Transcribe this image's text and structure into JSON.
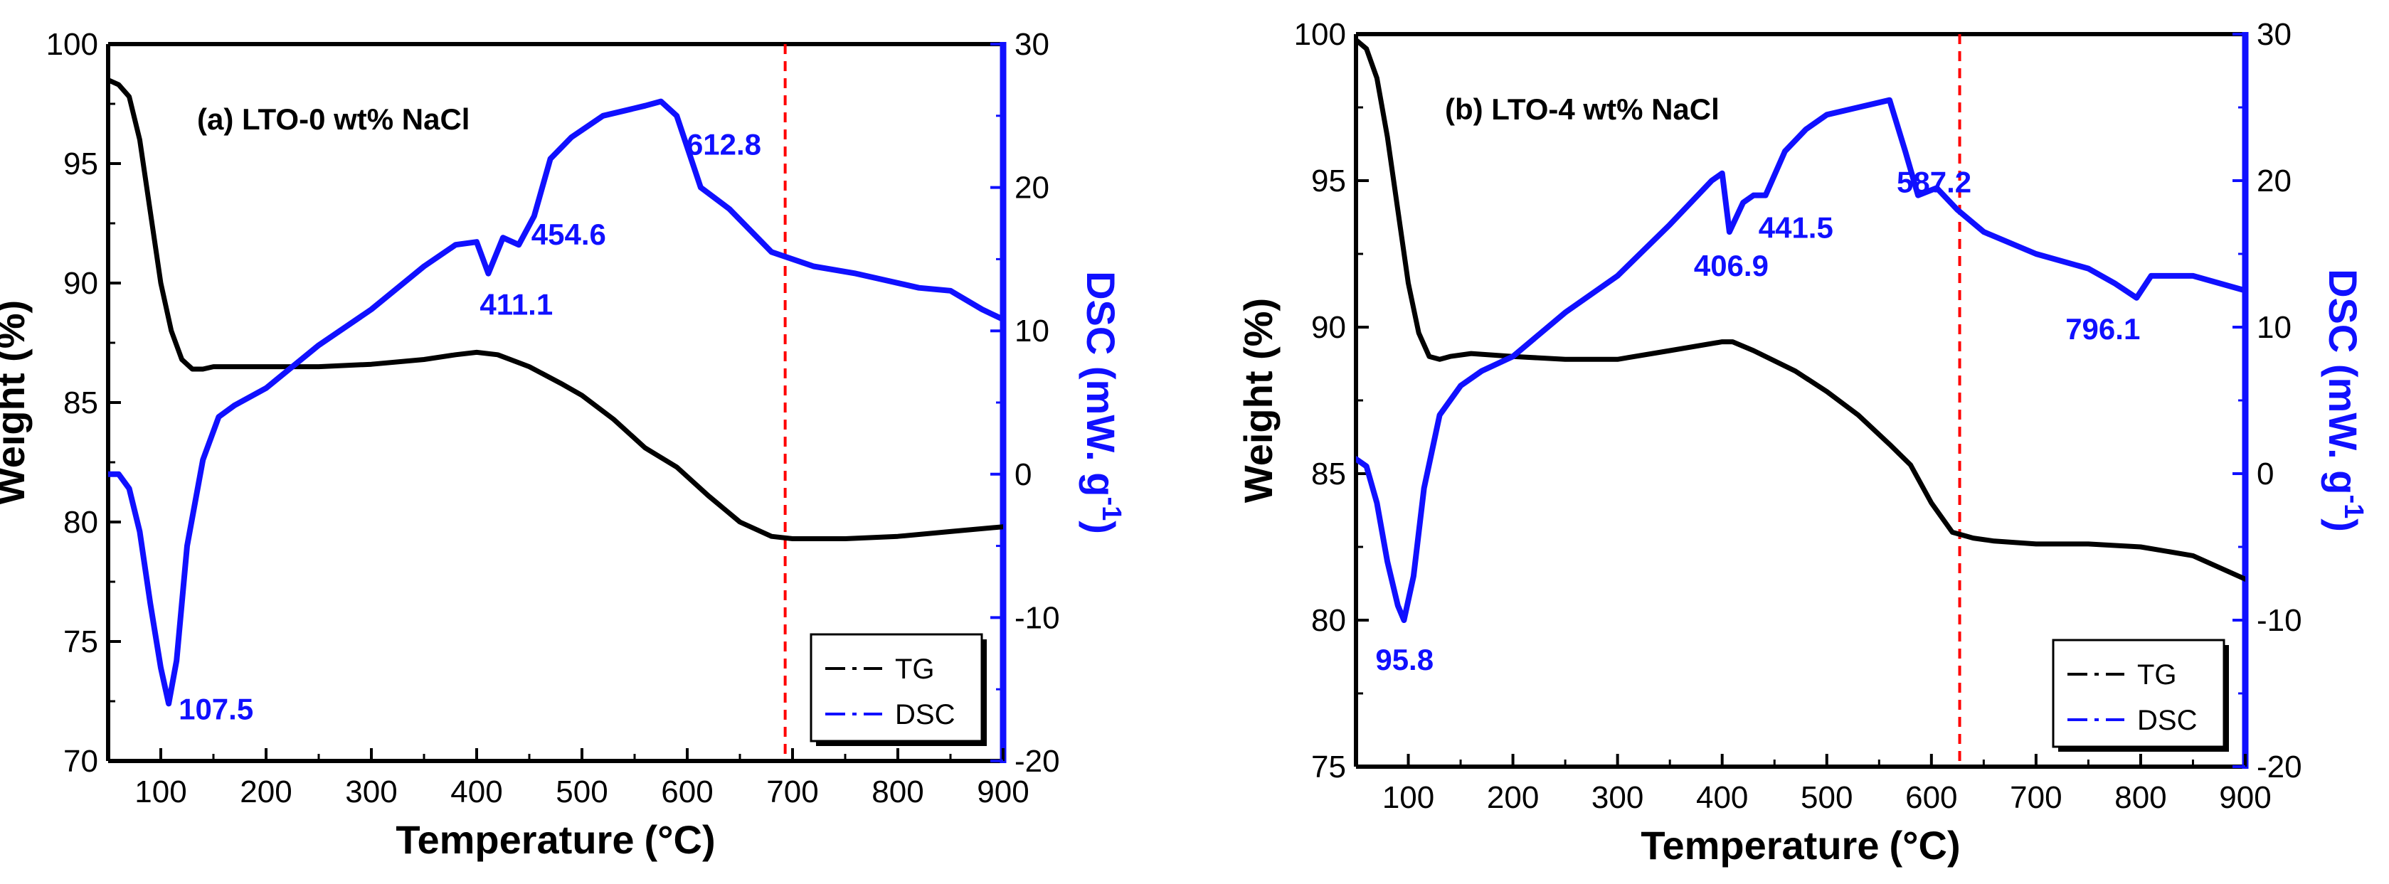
{
  "colors": {
    "tg": "#000000",
    "dsc": "#1010ff",
    "ref_line": "#ff0000",
    "right_axis": "#1010ff"
  },
  "chart_data": [
    {
      "type": "line",
      "title": "(a) LTO-0 wt% NaCl",
      "xlabel": "Temperature",
      "xlabel_unit": "(°C)",
      "ylabel": "Weight (%)",
      "y2label": "DSC (mW. g",
      "y2label_sup": "-1",
      "y2label_close": ")",
      "xlim": [
        50,
        900
      ],
      "ylim": [
        70,
        100
      ],
      "y2lim": [
        -20,
        30
      ],
      "xticks": [
        100,
        200,
        300,
        400,
        500,
        600,
        700,
        800,
        900
      ],
      "xtick_labels": [
        "100",
        "200",
        "300",
        "400",
        "500",
        "600",
        "700",
        "800",
        "900"
      ],
      "yticks": [
        70,
        75,
        80,
        85,
        90,
        95,
        100
      ],
      "ytick_labels": [
        "70",
        "75",
        "80",
        "85",
        "90",
        "95",
        "100"
      ],
      "y2ticks": [
        -20,
        -10,
        0,
        10,
        20,
        30
      ],
      "y2tick_labels": [
        "-20",
        "-10",
        "0",
        "10",
        "20",
        "30"
      ],
      "vline_x": 693,
      "series": [
        {
          "name": "TG",
          "axis": "left",
          "x": [
            50,
            60,
            70,
            80,
            90,
            100,
            110,
            120,
            130,
            140,
            150,
            200,
            250,
            300,
            350,
            380,
            400,
            420,
            450,
            480,
            500,
            530,
            560,
            590,
            620,
            650,
            680,
            700,
            750,
            800,
            850,
            900
          ],
          "y": [
            98.5,
            98.3,
            97.8,
            96,
            93,
            90,
            88,
            86.8,
            86.4,
            86.4,
            86.5,
            86.5,
            86.5,
            86.6,
            86.8,
            87,
            87.1,
            87,
            86.5,
            85.8,
            85.3,
            84.3,
            83.1,
            82.3,
            81.1,
            80,
            79.4,
            79.3,
            79.3,
            79.4,
            79.6,
            79.8
          ]
        },
        {
          "name": "DSC",
          "axis": "right",
          "x": [
            50,
            60,
            70,
            80,
            90,
            100,
            107.5,
            115,
            125,
            140,
            155,
            170,
            200,
            250,
            300,
            350,
            380,
            400,
            411.1,
            425,
            440,
            454.6,
            470,
            490,
            520,
            560,
            575,
            590,
            612.8,
            640,
            680,
            720,
            760,
            790,
            820,
            850,
            880,
            900
          ],
          "y": [
            0,
            0,
            -1,
            -4,
            -9,
            -13.5,
            -16,
            -13,
            -5,
            1,
            4,
            4.8,
            6,
            9,
            11.5,
            14.5,
            16,
            16.2,
            14,
            16.5,
            16,
            18,
            22,
            23.5,
            25,
            25.7,
            26,
            25,
            20,
            18.5,
            15.5,
            14.5,
            14,
            13.5,
            13,
            12.8,
            11.5,
            10.8
          ]
        }
      ],
      "annotations": [
        {
          "text": "107.5",
          "x": 107.5,
          "y2": -16
        },
        {
          "text": "411.1",
          "x": 411.1,
          "y2": 14
        },
        {
          "text": "454.6",
          "x": 454.6,
          "y2": 18
        },
        {
          "text": "612.8",
          "x": 612.8,
          "y2": 20
        }
      ],
      "legend": {
        "position": "bottom-right",
        "entries": [
          "TG",
          "DSC"
        ]
      }
    },
    {
      "type": "line",
      "title": "(b) LTO-4 wt% NaCl",
      "xlabel": "Temperature",
      "xlabel_unit": "(°C)",
      "ylabel": "Weight (%)",
      "y2label": "DSC (mW. g",
      "y2label_sup": "-1",
      "y2label_close": ")",
      "xlim": [
        50,
        900
      ],
      "ylim": [
        75,
        100
      ],
      "y2lim": [
        -20,
        30
      ],
      "xticks": [
        100,
        200,
        300,
        400,
        500,
        600,
        700,
        800,
        900
      ],
      "xtick_labels": [
        "100",
        "200",
        "300",
        "400",
        "500",
        "600",
        "700",
        "800",
        "900"
      ],
      "yticks": [
        75,
        80,
        85,
        90,
        95,
        100
      ],
      "ytick_labels": [
        "75",
        "80",
        "85",
        "90",
        "95",
        "100"
      ],
      "y2ticks": [
        -20,
        -10,
        0,
        10,
        20,
        30
      ],
      "y2tick_labels": [
        "-20",
        "-10",
        "0",
        "10",
        "20",
        "30"
      ],
      "vline_x": 627,
      "series": [
        {
          "name": "TG",
          "axis": "left",
          "x": [
            50,
            60,
            70,
            80,
            90,
            100,
            110,
            120,
            130,
            140,
            160,
            200,
            250,
            300,
            350,
            400,
            410,
            430,
            470,
            500,
            530,
            560,
            580,
            600,
            620,
            640,
            660,
            700,
            750,
            800,
            850,
            900
          ],
          "y": [
            99.8,
            99.5,
            98.5,
            96.5,
            94,
            91.5,
            89.8,
            89,
            88.9,
            89,
            89.1,
            89,
            88.9,
            88.9,
            89.2,
            89.5,
            89.5,
            89.2,
            88.5,
            87.8,
            87,
            86,
            85.3,
            84,
            83,
            82.8,
            82.7,
            82.6,
            82.6,
            82.5,
            82.2,
            81.4
          ]
        },
        {
          "name": "DSC",
          "axis": "right",
          "x": [
            50,
            60,
            70,
            80,
            90,
            95.8,
            105,
            115,
            130,
            150,
            170,
            200,
            250,
            300,
            350,
            390,
            400,
            406.9,
            420,
            430,
            441.5,
            460,
            480,
            500,
            530,
            560,
            575,
            587.2,
            605,
            625,
            650,
            700,
            750,
            775,
            796.1,
            810,
            850,
            900
          ],
          "y": [
            1,
            0.5,
            -2,
            -6,
            -9,
            -10,
            -7,
            -1,
            4,
            6,
            7,
            8,
            11,
            13.5,
            17,
            20,
            20.5,
            16.5,
            18.5,
            19,
            19,
            22,
            23.5,
            24.5,
            25,
            25.5,
            22,
            19,
            19.5,
            18,
            16.5,
            15,
            14,
            13,
            12,
            13.5,
            13.5,
            12.5
          ]
        }
      ],
      "annotations": [
        {
          "text": "95.8",
          "x": 95.8,
          "y2": -10
        },
        {
          "text": "406.9",
          "x": 406.9,
          "y2": 16.5
        },
        {
          "text": "441.5",
          "x": 441.5,
          "y2": 19
        },
        {
          "text": "587.2",
          "x": 587.2,
          "y2": 19
        },
        {
          "text": "796.1",
          "x": 796.1,
          "y2": 12
        }
      ],
      "legend": {
        "position": "bottom-right",
        "entries": [
          "TG",
          "DSC"
        ]
      }
    }
  ]
}
